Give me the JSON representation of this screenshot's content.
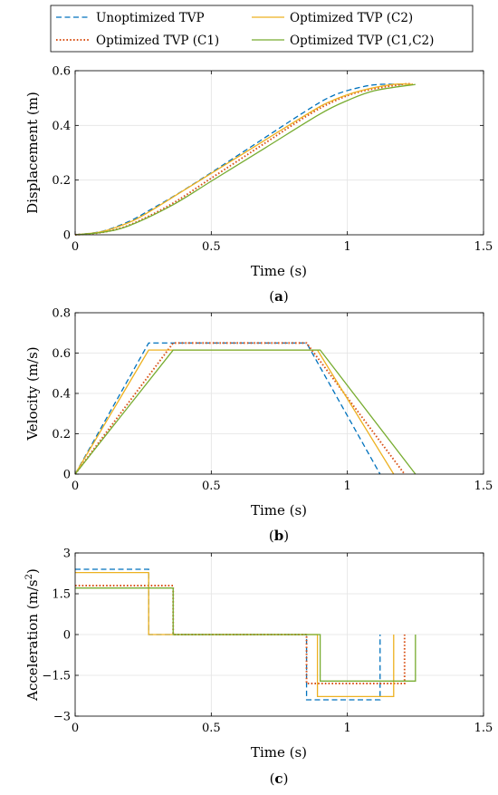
{
  "legend": {
    "entries": [
      {
        "series": "unopt",
        "label": "Unoptimized TVP"
      },
      {
        "series": "c2",
        "label": "Optimized TVP (C2)"
      },
      {
        "series": "c1",
        "label": "Optimized TVP (C1)"
      },
      {
        "series": "c1c2",
        "label": "Optimized TVP (C1,C2)"
      }
    ]
  },
  "series_styles": {
    "unopt": {
      "color": "#0072BD",
      "dash": "dashed"
    },
    "c2": {
      "color": "#EDB120",
      "dash": "solid"
    },
    "c1": {
      "color": "#D95319",
      "dash": "dotted"
    },
    "c1c2": {
      "color": "#77AC30",
      "dash": "solid"
    }
  },
  "chart_data": [
    {
      "type": "line",
      "caption": {
        "open": "(",
        "letter": "a",
        "close": ")"
      },
      "xlabel": "Time (s)",
      "ylabel": "Displacement (m)",
      "xlim": [
        0,
        1.5
      ],
      "ylim": [
        0,
        0.6
      ],
      "xticks": [
        0,
        0.5,
        1,
        1.5
      ],
      "xtick_labels": [
        "0",
        "0.5",
        "1",
        "1.5"
      ],
      "yticks": [
        0,
        0.2,
        0.4,
        0.6
      ],
      "ytick_labels": [
        "0",
        "0.2",
        "0.4",
        "0.6"
      ],
      "grid": true,
      "series": [
        {
          "key": "unopt",
          "x": [
            0,
            0.1,
            0.2,
            0.27,
            0.4,
            0.6,
            0.85,
            0.95,
            1.05,
            1.12,
            1.21
          ],
          "y": [
            0,
            0.013,
            0.05,
            0.088,
            0.164,
            0.292,
            0.454,
            0.51,
            0.54,
            0.55,
            0.55
          ]
        },
        {
          "key": "c2",
          "x": [
            0,
            0.1,
            0.2,
            0.27,
            0.4,
            0.6,
            0.86,
            0.95,
            1.05,
            1.17,
            1.24
          ],
          "y": [
            0,
            0.012,
            0.046,
            0.083,
            0.163,
            0.286,
            0.446,
            0.493,
            0.527,
            0.55,
            0.55
          ]
        },
        {
          "key": "c1",
          "x": [
            0,
            0.1,
            0.2,
            0.35,
            0.5,
            0.7,
            0.85,
            0.95,
            1.05,
            1.2,
            1.24
          ],
          "y": [
            0,
            0.009,
            0.036,
            0.11,
            0.207,
            0.337,
            0.434,
            0.488,
            0.524,
            0.55,
            0.55
          ]
        },
        {
          "key": "c1c2",
          "x": [
            0,
            0.1,
            0.2,
            0.36,
            0.5,
            0.7,
            0.9,
            1.0,
            1.1,
            1.25
          ],
          "y": [
            0,
            0.009,
            0.034,
            0.11,
            0.196,
            0.319,
            0.442,
            0.491,
            0.527,
            0.55
          ]
        }
      ]
    },
    {
      "type": "line",
      "caption": {
        "open": "(",
        "letter": "b",
        "close": ")"
      },
      "xlabel": "Time (s)",
      "ylabel": "Velocity (m/s)",
      "xlim": [
        0,
        1.5
      ],
      "ylim": [
        0,
        0.8
      ],
      "xticks": [
        0,
        0.5,
        1,
        1.5
      ],
      "xtick_labels": [
        "0",
        "0.5",
        "1",
        "1.5"
      ],
      "yticks": [
        0,
        0.2,
        0.4,
        0.6,
        0.8
      ],
      "ytick_labels": [
        "0",
        "0.2",
        "0.4",
        "0.6",
        "0.8"
      ],
      "grid": true,
      "series": [
        {
          "key": "unopt",
          "x": [
            0,
            0.27,
            0.85,
            1.12
          ],
          "y": [
            0,
            0.65,
            0.65,
            0
          ]
        },
        {
          "key": "c2",
          "x": [
            0,
            0.27,
            0.89,
            1.17
          ],
          "y": [
            0,
            0.615,
            0.615,
            0
          ]
        },
        {
          "key": "c1",
          "x": [
            0,
            0.36,
            0.85,
            1.21
          ],
          "y": [
            0,
            0.65,
            0.65,
            0
          ]
        },
        {
          "key": "c1c2",
          "x": [
            0,
            0.36,
            0.9,
            1.25
          ],
          "y": [
            0,
            0.615,
            0.615,
            0
          ]
        }
      ]
    },
    {
      "type": "line",
      "caption": {
        "open": "(",
        "letter": "c",
        "close": ")"
      },
      "xlabel": "Time (s)",
      "ylabel": "Acceleration (m/s",
      "ylabel_sup": "2",
      "ylabel_close": ")",
      "xlim": [
        0,
        1.5
      ],
      "ylim": [
        -3,
        3
      ],
      "xticks": [
        0,
        0.5,
        1,
        1.5
      ],
      "xtick_labels": [
        "0",
        "0.5",
        "1",
        "1.5"
      ],
      "yticks": [
        -3,
        -1.5,
        0,
        1.5,
        3
      ],
      "ytick_labels": [
        "−3",
        "−1.5",
        "0",
        "1.5",
        "3"
      ],
      "grid": true,
      "series": [
        {
          "key": "unopt",
          "x": [
            0,
            0.27,
            0.27,
            0.85,
            0.85,
            1.12,
            1.12
          ],
          "y": [
            2.4,
            2.4,
            0,
            0,
            -2.4,
            -2.4,
            0
          ]
        },
        {
          "key": "c2",
          "x": [
            0,
            0.27,
            0.27,
            0.89,
            0.89,
            1.17,
            1.17
          ],
          "y": [
            2.28,
            2.28,
            0,
            0,
            -2.28,
            -2.28,
            0
          ]
        },
        {
          "key": "c1",
          "x": [
            0,
            0.36,
            0.36,
            0.85,
            0.85,
            1.21,
            1.21
          ],
          "y": [
            1.8,
            1.8,
            0,
            0,
            -1.8,
            -1.8,
            0
          ]
        },
        {
          "key": "c1c2",
          "x": [
            0,
            0.36,
            0.36,
            0.9,
            0.9,
            1.25,
            1.25
          ],
          "y": [
            1.71,
            1.71,
            0,
            0,
            -1.71,
            -1.71,
            0
          ]
        }
      ]
    }
  ]
}
